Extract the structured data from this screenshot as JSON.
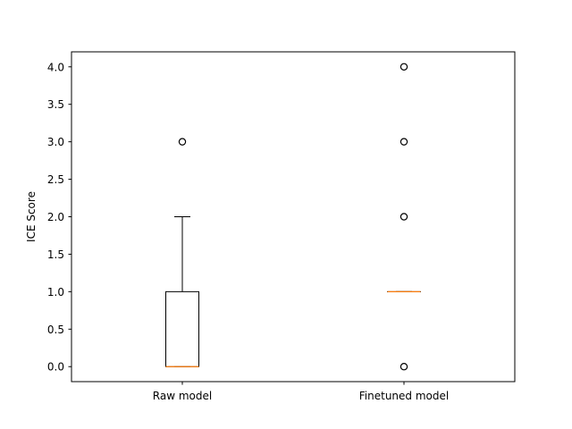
{
  "chart_data": {
    "type": "box",
    "title": "",
    "xlabel": "",
    "ylabel": "ICE Score",
    "categories": [
      "Raw model",
      "Finetuned model"
    ],
    "ylim": [
      -0.2,
      4.2
    ],
    "yticks": [
      0.0,
      0.5,
      1.0,
      1.5,
      2.0,
      2.5,
      3.0,
      3.5,
      4.0
    ],
    "ytick_labels": [
      "0.0",
      "0.5",
      "1.0",
      "1.5",
      "2.0",
      "2.5",
      "3.0",
      "3.5",
      "4.0"
    ],
    "grid": false,
    "boxes": [
      {
        "name": "Raw model",
        "whisker_low": 0,
        "q1": 0,
        "median": 0,
        "q3": 1,
        "whisker_high": 2,
        "outliers": [
          3
        ]
      },
      {
        "name": "Finetuned model",
        "whisker_low": 1,
        "q1": 1,
        "median": 1,
        "q3": 1,
        "whisker_high": 1,
        "outliers": [
          0,
          2,
          3,
          4
        ]
      }
    ],
    "colors": {
      "box": "#000000",
      "median": "#ff7f0e"
    }
  }
}
